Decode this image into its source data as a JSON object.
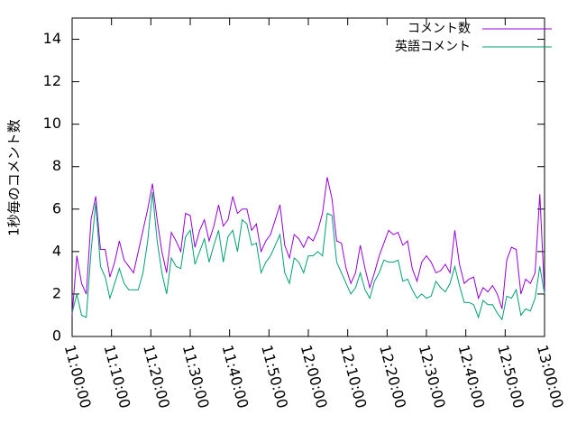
{
  "chart_data": {
    "type": "line",
    "ylabel": "1秒毎のコメント数",
    "x": [
      0,
      1.2,
      2.4,
      3.6,
      4.8,
      6,
      7.2,
      8.4,
      9.6,
      10.8,
      12,
      13.2,
      14.4,
      15.6,
      16.8,
      18,
      19.2,
      20.4,
      21.6,
      22.8,
      24,
      25.2,
      26.4,
      27.6,
      28.8,
      30,
      31.2,
      32.4,
      33.6,
      34.8,
      36,
      37.2,
      38.4,
      39.6,
      40.8,
      42,
      43.2,
      44.4,
      45.6,
      46.8,
      48,
      49.2,
      50.4,
      51.6,
      52.8,
      54,
      55.2,
      56.4,
      57.6,
      58.8,
      60,
      61.2,
      62.4,
      63.6,
      64.8,
      66,
      67.2,
      68.4,
      69.6,
      70.8,
      72,
      73.2,
      74.4,
      75.6,
      76.8,
      78,
      79.2,
      80.4,
      81.6,
      82.8,
      84,
      85.2,
      86.4,
      87.6,
      88.8,
      90,
      91.2,
      92.4,
      93.6,
      94.8,
      96,
      97.2,
      98.4,
      99.6,
      100.8,
      102,
      103.2,
      104.4,
      105.6,
      106.8,
      108,
      109.2,
      110.4,
      111.6,
      112.8,
      114,
      115.2,
      116.4,
      117.6,
      118.8,
      120
    ],
    "series": [
      {
        "name": "コメント数",
        "color": "#9400d3",
        "values": [
          1.0,
          3.8,
          2.5,
          2.0,
          5.5,
          6.6,
          4.1,
          4.1,
          2.8,
          3.5,
          4.5,
          3.6,
          3.3,
          3.0,
          4.0,
          5.0,
          6.0,
          7.2,
          5.5,
          4.0,
          3.0,
          4.9,
          4.5,
          4.0,
          5.8,
          5.7,
          4.2,
          5.0,
          5.5,
          4.5,
          5.2,
          6.2,
          5.2,
          5.5,
          6.6,
          5.8,
          6.0,
          6.0,
          5.0,
          5.3,
          4.0,
          4.5,
          4.8,
          5.5,
          6.2,
          4.3,
          3.7,
          4.8,
          4.6,
          4.2,
          4.7,
          4.5,
          5.0,
          5.8,
          7.5,
          6.5,
          4.5,
          4.4,
          3.2,
          2.5,
          3.0,
          4.3,
          3.2,
          2.3,
          3.0,
          3.8,
          4.4,
          5.0,
          4.8,
          4.9,
          4.3,
          4.5,
          3.2,
          2.6,
          3.5,
          3.8,
          3.5,
          3.0,
          3.1,
          3.4,
          3.0,
          5.0,
          3.4,
          2.5,
          2.7,
          2.8,
          1.8,
          2.3,
          2.1,
          2.4,
          2.0,
          1.3,
          3.6,
          4.2,
          4.1,
          2.0,
          2.7,
          2.5,
          3.0,
          6.7,
          2.0
        ]
      },
      {
        "name": "英語コメント",
        "color": "#009e73",
        "values": [
          1.1,
          2.0,
          1.0,
          0.9,
          4.0,
          6.3,
          3.3,
          2.8,
          1.8,
          2.5,
          3.2,
          2.5,
          2.2,
          2.2,
          2.2,
          3.0,
          4.5,
          6.8,
          4.5,
          3.0,
          2.0,
          3.7,
          3.3,
          3.2,
          4.7,
          5.0,
          3.4,
          4.0,
          4.6,
          3.5,
          4.3,
          5.0,
          3.5,
          4.7,
          5.0,
          4.0,
          5.5,
          5.3,
          4.3,
          4.4,
          3.0,
          3.5,
          3.8,
          4.3,
          4.8,
          3.0,
          2.5,
          3.7,
          3.5,
          3.0,
          3.8,
          3.8,
          4.0,
          3.8,
          5.8,
          5.7,
          3.5,
          3.0,
          2.5,
          2.0,
          2.3,
          3.0,
          2.2,
          1.8,
          2.6,
          3.0,
          3.6,
          3.5,
          3.5,
          3.6,
          2.6,
          2.7,
          2.2,
          1.8,
          2.0,
          1.8,
          1.9,
          2.6,
          2.3,
          2.1,
          2.5,
          3.3,
          2.4,
          1.6,
          1.6,
          1.5,
          0.9,
          1.7,
          1.5,
          1.5,
          1.1,
          0.8,
          1.9,
          1.8,
          2.2,
          1.0,
          1.3,
          1.2,
          1.8,
          3.3,
          2.0
        ]
      }
    ],
    "xlim": [
      0,
      120
    ],
    "xticks": [
      {
        "value": 0,
        "label": "11:00:00"
      },
      {
        "value": 10,
        "label": "11:10:00"
      },
      {
        "value": 20,
        "label": "11:20:00"
      },
      {
        "value": 30,
        "label": "11:30:00"
      },
      {
        "value": 40,
        "label": "11:40:00"
      },
      {
        "value": 50,
        "label": "11:50:00"
      },
      {
        "value": 60,
        "label": "12:00:00"
      },
      {
        "value": 70,
        "label": "12:10:00"
      },
      {
        "value": 80,
        "label": "12:20:00"
      },
      {
        "value": 90,
        "label": "12:30:00"
      },
      {
        "value": 100,
        "label": "12:40:00"
      },
      {
        "value": 110,
        "label": "12:50:00"
      },
      {
        "value": 120,
        "label": "13:00:00"
      }
    ],
    "ylim": [
      0,
      15
    ],
    "yticks": [
      0,
      2,
      4,
      6,
      8,
      10,
      12,
      14
    ],
    "legend": "top-right"
  }
}
